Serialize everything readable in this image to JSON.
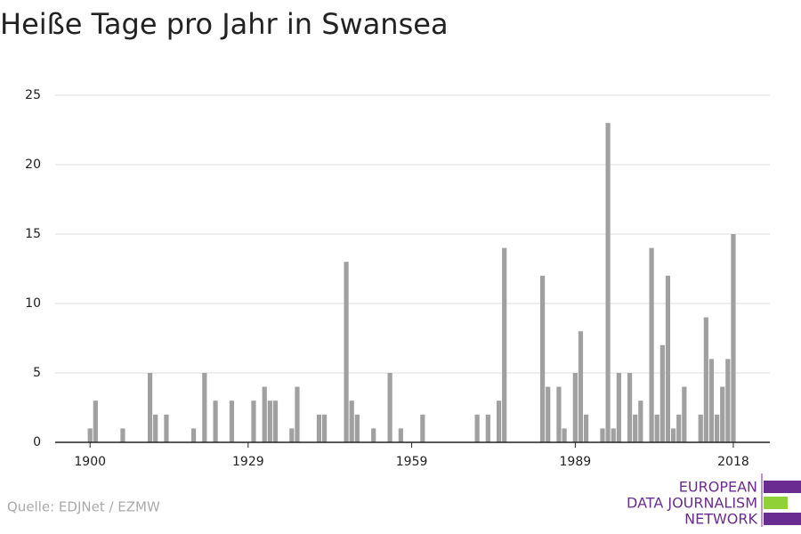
{
  "chart_data": {
    "type": "bar",
    "title": "Heiße Tage pro Jahr in Swansea",
    "x": [
      1900,
      1901,
      1906,
      1911,
      1912,
      1914,
      1919,
      1921,
      1923,
      1926,
      1930,
      1932,
      1933,
      1934,
      1937,
      1938,
      1942,
      1943,
      1947,
      1948,
      1949,
      1952,
      1955,
      1957,
      1961,
      1971,
      1973,
      1975,
      1976,
      1983,
      1984,
      1986,
      1987,
      1989,
      1990,
      1991,
      1994,
      1995,
      1996,
      1997,
      1999,
      2000,
      2001,
      2003,
      2004,
      2005,
      2006,
      2007,
      2008,
      2009,
      2012,
      2013,
      2014,
      2015,
      2016,
      2017,
      2018
    ],
    "values": [
      1,
      3,
      1,
      5,
      2,
      2,
      1,
      5,
      3,
      3,
      3,
      4,
      3,
      3,
      1,
      4,
      2,
      2,
      13,
      3,
      2,
      1,
      5,
      1,
      2,
      2,
      2,
      3,
      14,
      12,
      4,
      4,
      1,
      5,
      8,
      2,
      1,
      23,
      1,
      5,
      5,
      2,
      3,
      14,
      2,
      7,
      12,
      1,
      2,
      4,
      2,
      9,
      6,
      2,
      4,
      6,
      15
    ],
    "color": "#a0a0a0",
    "xlim": [
      1893.6,
      2024.7
    ],
    "xticks": [
      1900,
      1929,
      1959,
      1989,
      2018
    ],
    "ylim": [
      0,
      25
    ],
    "yticks": [
      0,
      5,
      10,
      15,
      20,
      25
    ],
    "grid": true
  },
  "source": "Quelle: EDJNet / EZMW",
  "logo": [
    "EUROPEAN",
    "DATA JOURNALISM",
    "NETWORK"
  ]
}
